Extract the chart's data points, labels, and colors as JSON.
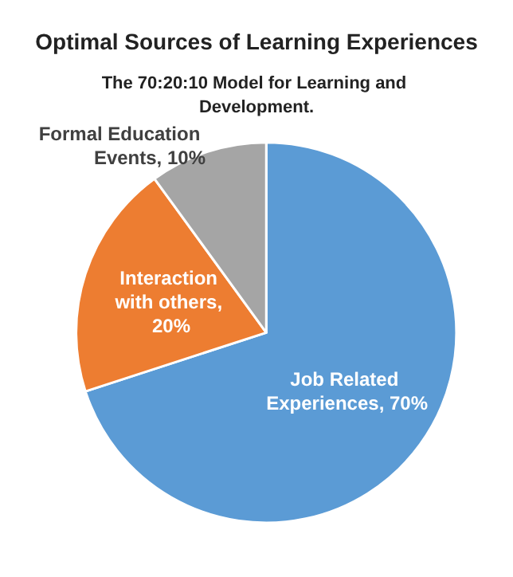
{
  "chart_data": {
    "type": "pie",
    "title": "Optimal Sources of Learning Experiences",
    "subtitle": "The 70:20:10 Model for Learning and Development.",
    "categories": [
      "Job Related Experiences, 70%",
      "Interaction with others, 20%",
      "Formal Education Events, 10%"
    ],
    "values": [
      70,
      20,
      10
    ],
    "colors": [
      "#5b9bd5",
      "#ed7d31",
      "#a5a5a5"
    ],
    "legend": false
  }
}
